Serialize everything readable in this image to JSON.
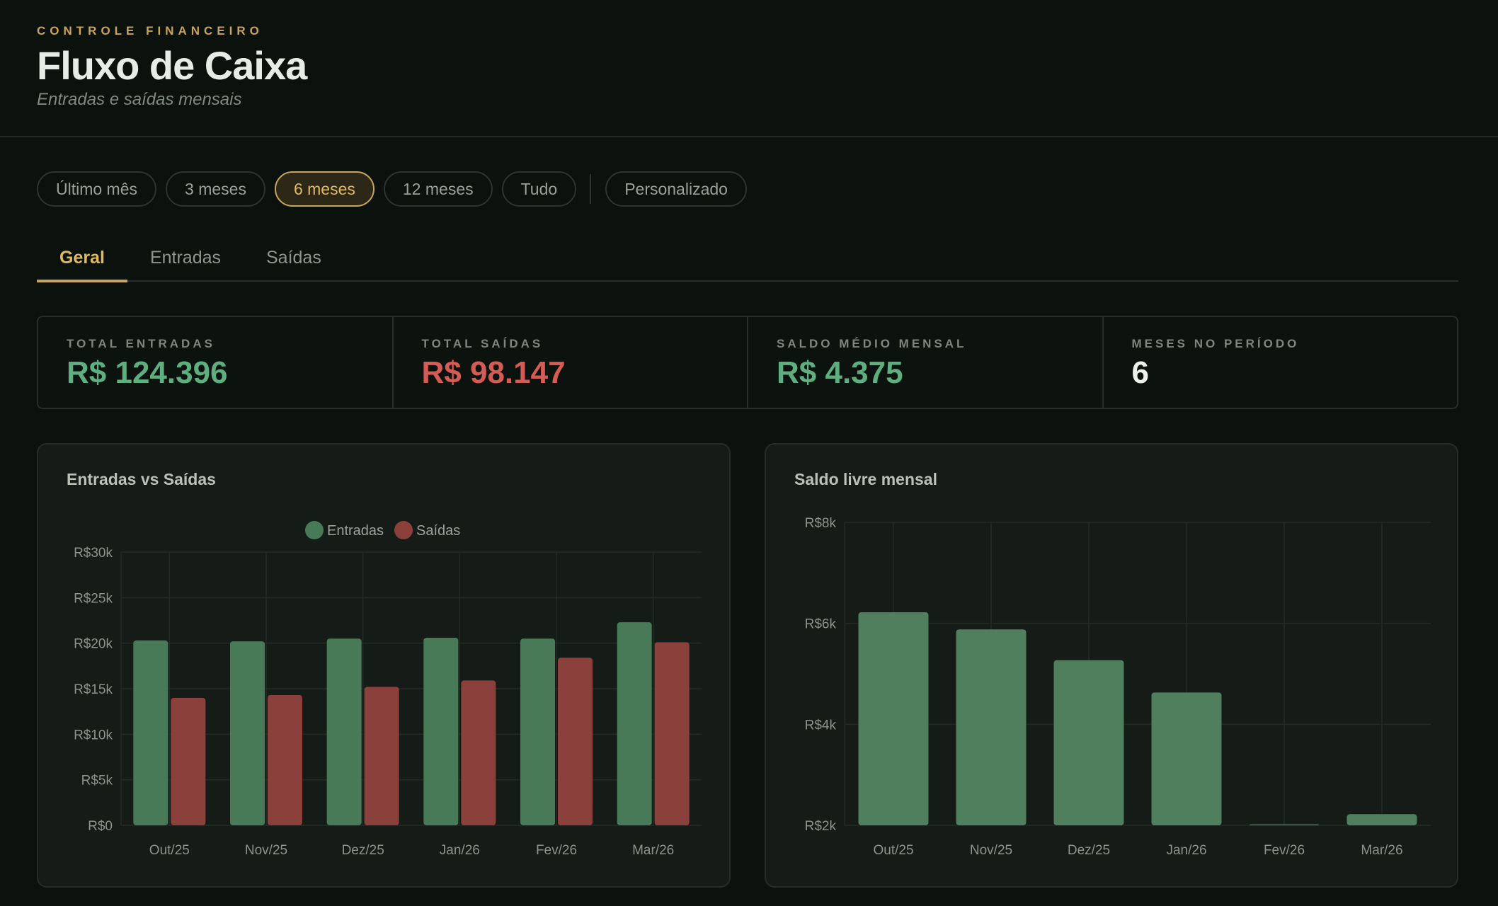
{
  "header": {
    "eyebrow": "CONTROLE FINANCEIRO",
    "title": "Fluxo de Caixa",
    "subtitle": "Entradas e saídas mensais"
  },
  "filters": {
    "items": [
      "Último mês",
      "3 meses",
      "6 meses",
      "12 meses",
      "Tudo"
    ],
    "selected": "6 meses",
    "custom": "Personalizado"
  },
  "tabs": {
    "items": [
      "Geral",
      "Entradas",
      "Saídas"
    ],
    "selected": "Geral"
  },
  "stats": [
    {
      "label": "TOTAL ENTRADAS",
      "value": "R$ 124.396",
      "color": "#5fae7f"
    },
    {
      "label": "TOTAL SAÍDAS",
      "value": "R$ 98.147",
      "color": "#d55b55"
    },
    {
      "label": "SALDO MÉDIO MENSAL",
      "value": "R$ 4.375",
      "color": "#5fae7f"
    },
    {
      "label": "MESES NO PERÍODO",
      "value": "6",
      "color": "#eef1ec"
    }
  ],
  "colors": {
    "entradas": "#497a58",
    "saidas": "#8b403b",
    "saldo": "#4f7f5d",
    "grid": "#222b24"
  },
  "chart_data": [
    {
      "type": "bar",
      "title": "Entradas vs Saídas",
      "categories": [
        "Out/25",
        "Nov/25",
        "Dez/25",
        "Jan/26",
        "Fev/26",
        "Mar/26"
      ],
      "series": [
        {
          "name": "Entradas",
          "values": [
            20300,
            20200,
            20500,
            20600,
            20500,
            22300
          ]
        },
        {
          "name": "Saídas",
          "values": [
            14000,
            14300,
            15200,
            15900,
            18400,
            20100
          ]
        }
      ],
      "yticks": [
        "R$0",
        "R$5k",
        "R$10k",
        "R$15k",
        "R$20k",
        "R$25k",
        "R$30k"
      ],
      "ylim": [
        0,
        30000
      ],
      "legend": "top-center",
      "grid": true
    },
    {
      "type": "bar",
      "title": "Saldo livre mensal",
      "categories": [
        "Out/25",
        "Nov/25",
        "Dez/25",
        "Jan/26",
        "Fev/26",
        "Mar/26"
      ],
      "values": [
        6220,
        5880,
        5270,
        4630,
        2020,
        2220
      ],
      "yticks": [
        "R$2k",
        "R$4k",
        "R$6k",
        "R$8k"
      ],
      "ylim": [
        2000,
        8000
      ],
      "grid": true
    }
  ]
}
